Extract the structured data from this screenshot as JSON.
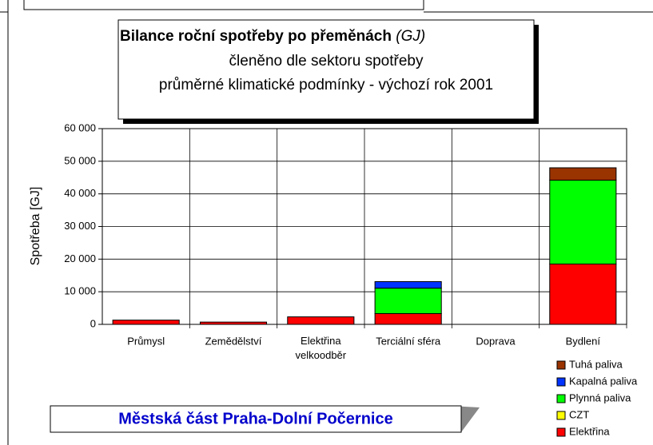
{
  "chart_data": {
    "type": "stacked_bar",
    "title": "Bilance roční spotřeby po přeměnách",
    "title_unit": "(GJ)",
    "subtitle": "členěno dle sektoru spotřeby",
    "subtitle2": "průměrné klimatické podmínky - výchozí rok 2001",
    "y_label": "Spotřeba [GJ]",
    "annotation": "Městská část Praha-Dolní Počernice",
    "categories": [
      "Průmysl",
      "Zemědělství",
      "Elektřina velkoodběr",
      "Terciální sféra",
      "Doprava",
      "Bydlení"
    ],
    "series": [
      {
        "name": "Elektřina",
        "color": "#ff0000",
        "values": [
          1300,
          700,
          2300,
          3300,
          0,
          18500
        ]
      },
      {
        "name": "CZT",
        "color": "#ffff00",
        "values": [
          0,
          0,
          0,
          0,
          0,
          0
        ]
      },
      {
        "name": "Plynná paliva",
        "color": "#00ff00",
        "values": [
          0,
          0,
          0,
          7800,
          0,
          25700
        ]
      },
      {
        "name": "Kapalná paliva",
        "color": "#0033ff",
        "values": [
          0,
          0,
          0,
          2000,
          0,
          0
        ]
      },
      {
        "name": "Tuhá paliva",
        "color": "#993300",
        "values": [
          0,
          0,
          0,
          0,
          0,
          3800
        ]
      }
    ],
    "ylim": [
      0,
      60000
    ],
    "yticks": [
      0,
      {
        "value": 10000,
        "label": "10 000"
      },
      {
        "value": 20000,
        "label": "20 000"
      },
      {
        "value": 30000,
        "label": "30 000"
      },
      {
        "value": 40000,
        "label": "40 000"
      },
      {
        "value": 50000,
        "label": "50 000"
      },
      {
        "value": 60000,
        "label": "60 000"
      }
    ],
    "grid": true
  }
}
